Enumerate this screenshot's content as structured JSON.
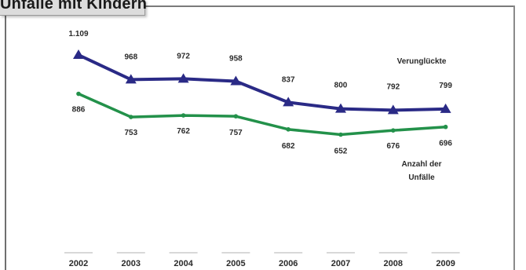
{
  "header": {
    "title": "Unfälle mit Kindern"
  },
  "chart_data": {
    "type": "line",
    "categories": [
      "2002",
      "2003",
      "2004",
      "2005",
      "2006",
      "2007",
      "2008",
      "2009"
    ],
    "ylim": [
      300,
      1150
    ],
    "grid": false,
    "series": [
      {
        "name": "Verunglückte",
        "labels": [
          "1.109",
          "968",
          "972",
          "958",
          "837",
          "800",
          "792",
          "799"
        ],
        "values": [
          1109,
          968,
          972,
          958,
          837,
          800,
          792,
          799
        ],
        "color": "#2a2a86",
        "marker": "triangle"
      },
      {
        "name_lines": [
          "Anzahl der",
          "Unfälle"
        ],
        "labels": [
          "886",
          "753",
          "762",
          "757",
          "682",
          "652",
          "676",
          "696"
        ],
        "values": [
          886,
          753,
          762,
          757,
          682,
          652,
          676,
          696
        ],
        "color": "#23914a",
        "marker": "dot"
      }
    ]
  }
}
